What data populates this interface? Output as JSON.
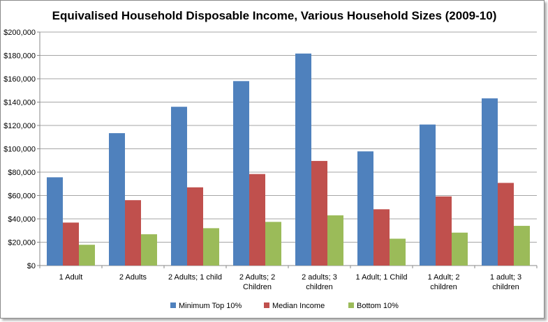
{
  "chart_data": {
    "type": "bar",
    "title": "Equivalised Household Disposable Income, Various Household Sizes (2009-10)",
    "xlabel": "",
    "ylabel": "",
    "ylim": [
      0,
      200000
    ],
    "yticks": [
      "$0",
      "$20,000",
      "$40,000",
      "$60,000",
      "$80,000",
      "$100,000",
      "$120,000",
      "$140,000",
      "$160,000",
      "$180,000",
      "$200,000"
    ],
    "grid": true,
    "legend_position": "bottom",
    "categories": [
      [
        "1 Adult"
      ],
      [
        "2 Adults"
      ],
      [
        "2 Adults; 1 child"
      ],
      [
        "2 Adults; 2",
        "Children"
      ],
      [
        "2 adults; 3",
        "children"
      ],
      [
        "1 Adult; 1 Child"
      ],
      [
        "1 Adult; 2",
        "children"
      ],
      [
        "1 adult; 3",
        "children"
      ]
    ],
    "series": [
      {
        "name": "Minimum Top 10%",
        "color": "#4f81bd",
        "values": [
          75600,
          113400,
          136000,
          158000,
          181600,
          97800,
          120800,
          143200
        ]
      },
      {
        "name": "Median Income",
        "color": "#c0504d",
        "values": [
          36800,
          56000,
          67000,
          78400,
          89600,
          48200,
          59200,
          70800
        ]
      },
      {
        "name": "Bottom 10%",
        "color": "#9bbb59",
        "values": [
          17800,
          26800,
          32000,
          37400,
          43000,
          23000,
          28200,
          34000
        ]
      }
    ]
  }
}
